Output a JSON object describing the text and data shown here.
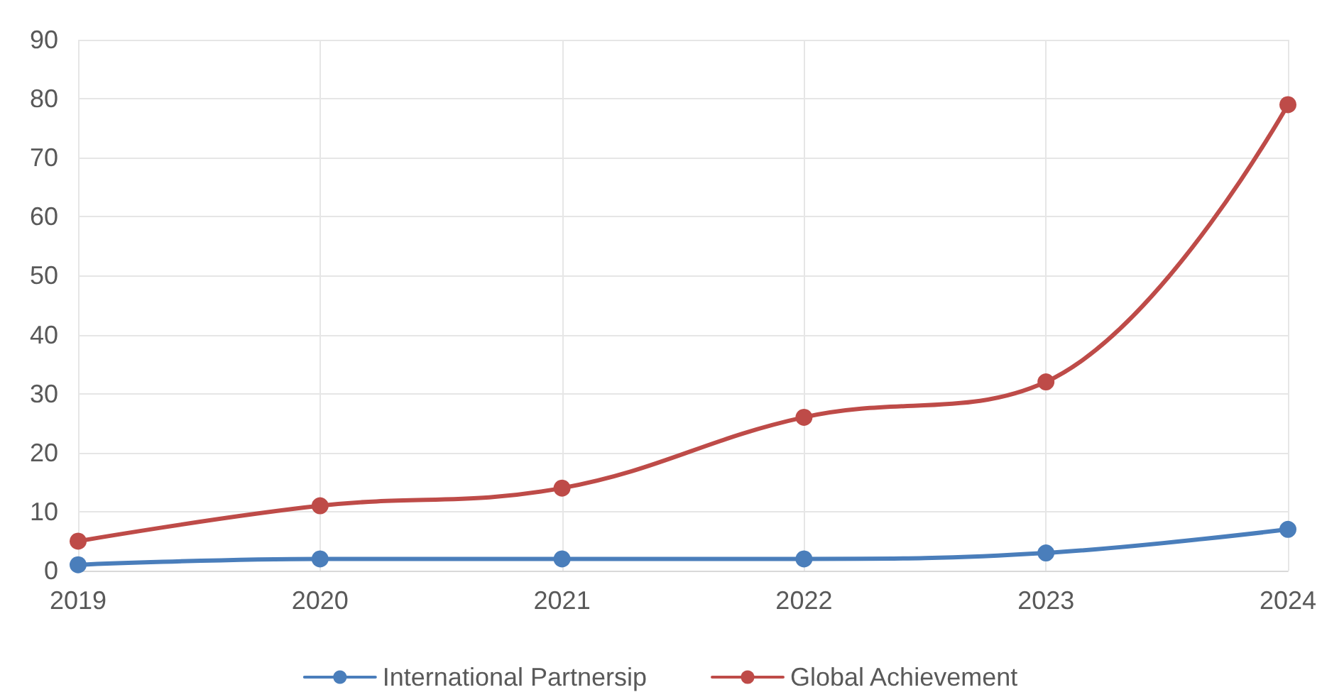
{
  "chart_data": {
    "type": "line",
    "categories": [
      "2019",
      "2020",
      "2021",
      "2022",
      "2023",
      "2024"
    ],
    "series": [
      {
        "name": "International Partnersip",
        "color": "#4a7ebb",
        "values": [
          1,
          2,
          2,
          2,
          3,
          7
        ]
      },
      {
        "name": "Global Achievement",
        "color": "#be4b48",
        "values": [
          5,
          11,
          14,
          26,
          32,
          79
        ]
      }
    ],
    "ylim": [
      0,
      90
    ],
    "yticks": [
      0,
      10,
      20,
      30,
      40,
      50,
      60,
      70,
      80,
      90
    ],
    "grid": true,
    "legend": "bottom",
    "marker": "circle",
    "line_style": "solid"
  }
}
